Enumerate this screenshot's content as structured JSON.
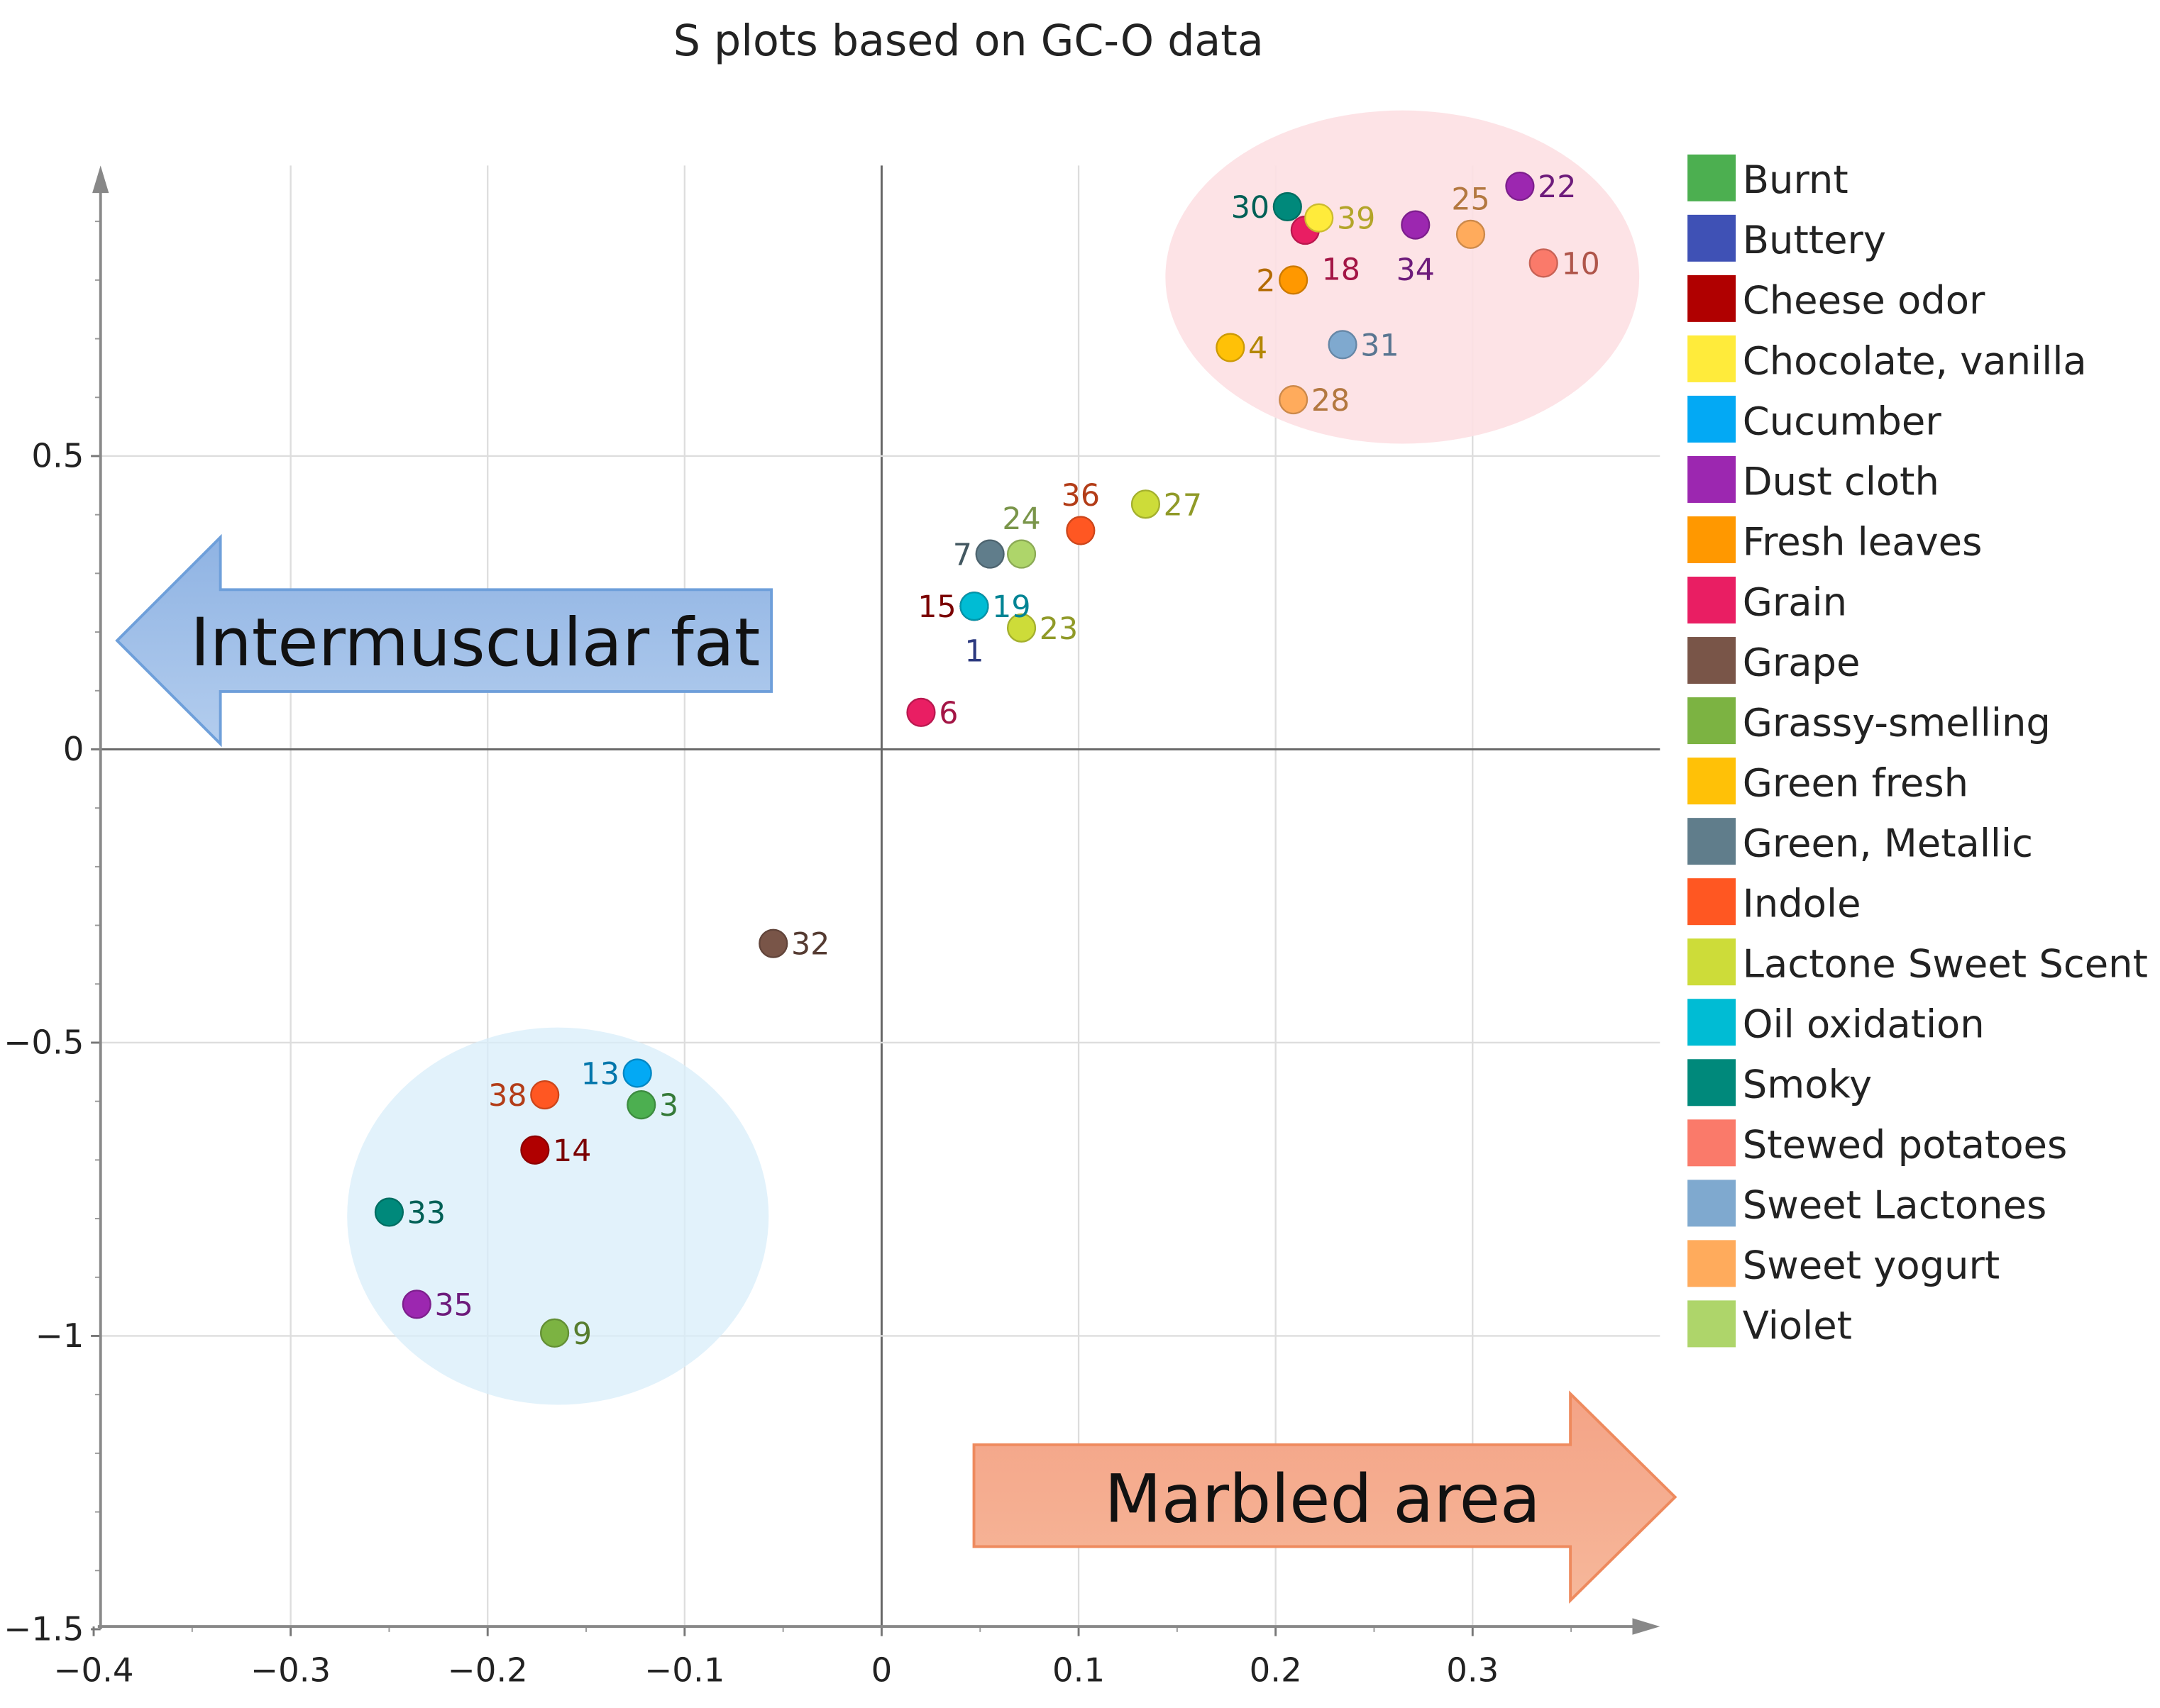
{
  "chart_data": {
    "type": "scatter",
    "title": "S plots based on GC-O data",
    "xlabel": "",
    "ylabel": "",
    "xlim": [
      -0.4,
      0.4
    ],
    "ylim": [
      -1.5,
      1.0
    ],
    "xticks": [
      -0.4,
      -0.3,
      -0.2,
      -0.1,
      0,
      0.1,
      0.2,
      0.3
    ],
    "xtick_labels": [
      "−0.4",
      "−0.3",
      "−0.2",
      "−0.1",
      "0",
      "0.1",
      "0.2",
      "0.3"
    ],
    "yticks": [
      0.5,
      0,
      -0.5,
      -1,
      -1.5
    ],
    "ytick_labels": [
      "0.5",
      "0",
      "−0.5",
      "−1",
      "−1.5"
    ],
    "grid": true,
    "legend_position": "right",
    "categories": [
      {
        "name": "Burnt",
        "color": "#4caf50"
      },
      {
        "name": "Buttery",
        "color": "#3f51b5"
      },
      {
        "name": "Cheese odor",
        "color": "#b00000"
      },
      {
        "name": "Chocolate, vanilla",
        "color": "#ffeb3b"
      },
      {
        "name": "Cucumber",
        "color": "#03a9f4"
      },
      {
        "name": "Dust cloth",
        "color": "#9c27b0"
      },
      {
        "name": "Fresh leaves",
        "color": "#ff9800"
      },
      {
        "name": "Grain",
        "color": "#e91e63"
      },
      {
        "name": "Grape",
        "color": "#795548"
      },
      {
        "name": "Grassy-smelling",
        "color": "#7cb342"
      },
      {
        "name": "Green fresh",
        "color": "#ffc107"
      },
      {
        "name": "Green, Metallic",
        "color": "#607d8b"
      },
      {
        "name": "Indole",
        "color": "#ff5722"
      },
      {
        "name": "Lactone Sweet Scent",
        "color": "#cddc39"
      },
      {
        "name": "Oil oxidation",
        "color": "#00bcd4"
      },
      {
        "name": "Smoky",
        "color": "#00897b"
      },
      {
        "name": "Stewed potatoes",
        "color": "#fa7a6a"
      },
      {
        "name": "Sweet Lactones",
        "color": "#7fa9cf"
      },
      {
        "name": "Sweet yogurt",
        "color": "#ffab5c"
      },
      {
        "name": "Violet",
        "color": "#aed56a"
      }
    ],
    "points": [
      {
        "id": "30",
        "x": 0.206,
        "y": 0.925,
        "category": "Smoky",
        "label_side": "left"
      },
      {
        "id": "18",
        "x": 0.215,
        "y": 0.885,
        "category": "Grain",
        "label_side": "below-right"
      },
      {
        "id": "39",
        "x": 0.222,
        "y": 0.906,
        "category": "Chocolate, vanilla",
        "label_side": "right"
      },
      {
        "id": "34",
        "x": 0.271,
        "y": 0.894,
        "category": "Dust cloth",
        "label_side": "below"
      },
      {
        "id": "25",
        "x": 0.299,
        "y": 0.878,
        "category": "Sweet yogurt",
        "label_side": "above"
      },
      {
        "id": "22",
        "x": 0.324,
        "y": 0.96,
        "category": "Dust cloth",
        "label_side": "right"
      },
      {
        "id": "10",
        "x": 0.336,
        "y": 0.829,
        "category": "Stewed potatoes",
        "label_side": "right"
      },
      {
        "id": "2",
        "x": 0.209,
        "y": 0.8,
        "category": "Fresh leaves",
        "label_side": "left"
      },
      {
        "id": "4",
        "x": 0.177,
        "y": 0.685,
        "category": "Green fresh",
        "label_side": "right"
      },
      {
        "id": "31",
        "x": 0.234,
        "y": 0.69,
        "category": "Sweet Lactones",
        "label_side": "right"
      },
      {
        "id": "28",
        "x": 0.209,
        "y": 0.596,
        "category": "Sweet yogurt",
        "label_side": "right"
      },
      {
        "id": "36",
        "x": 0.101,
        "y": 0.373,
        "category": "Indole",
        "label_side": "above"
      },
      {
        "id": "27",
        "x": 0.134,
        "y": 0.418,
        "category": "Lactone Sweet Scent",
        "label_side": "right"
      },
      {
        "id": "7",
        "x": 0.055,
        "y": 0.333,
        "category": "Green, Metallic",
        "label_side": "left"
      },
      {
        "id": "24",
        "x": 0.071,
        "y": 0.333,
        "category": "Violet",
        "label_side": "above"
      },
      {
        "id": "1",
        "x": 0.047,
        "y": 0.244,
        "category": "Buttery",
        "label_side": "below"
      },
      {
        "id": "15",
        "x": 0.047,
        "y": 0.244,
        "category": "Cheese odor",
        "label_side": "left"
      },
      {
        "id": "23",
        "x": 0.071,
        "y": 0.207,
        "category": "Lactone Sweet Scent",
        "label_side": "right"
      },
      {
        "id": "19",
        "x": 0.047,
        "y": 0.244,
        "category": "Oil oxidation",
        "label_side": "right"
      },
      {
        "id": "6",
        "x": 0.02,
        "y": 0.063,
        "category": "Grain",
        "label_side": "right"
      },
      {
        "id": "32",
        "x": -0.055,
        "y": -0.331,
        "category": "Grape",
        "label_side": "right"
      },
      {
        "id": "13",
        "x": -0.124,
        "y": -0.552,
        "category": "Cucumber",
        "label_side": "left"
      },
      {
        "id": "3",
        "x": -0.122,
        "y": -0.606,
        "category": "Burnt",
        "label_side": "right"
      },
      {
        "id": "38",
        "x": -0.171,
        "y": -0.589,
        "category": "Indole",
        "label_side": "left"
      },
      {
        "id": "14",
        "x": -0.176,
        "y": -0.683,
        "category": "Cheese odor",
        "label_side": "right"
      },
      {
        "id": "33",
        "x": -0.25,
        "y": -0.789,
        "category": "Smoky",
        "label_side": "right"
      },
      {
        "id": "35",
        "x": -0.236,
        "y": -0.946,
        "category": "Dust cloth",
        "label_side": "right"
      },
      {
        "id": "9",
        "x": -0.166,
        "y": -0.995,
        "category": "Grassy-smelling",
        "label_side": "right"
      }
    ],
    "annotations": {
      "left_arrow": "Intermuscular fat",
      "right_arrow": "Marbled area"
    }
  }
}
